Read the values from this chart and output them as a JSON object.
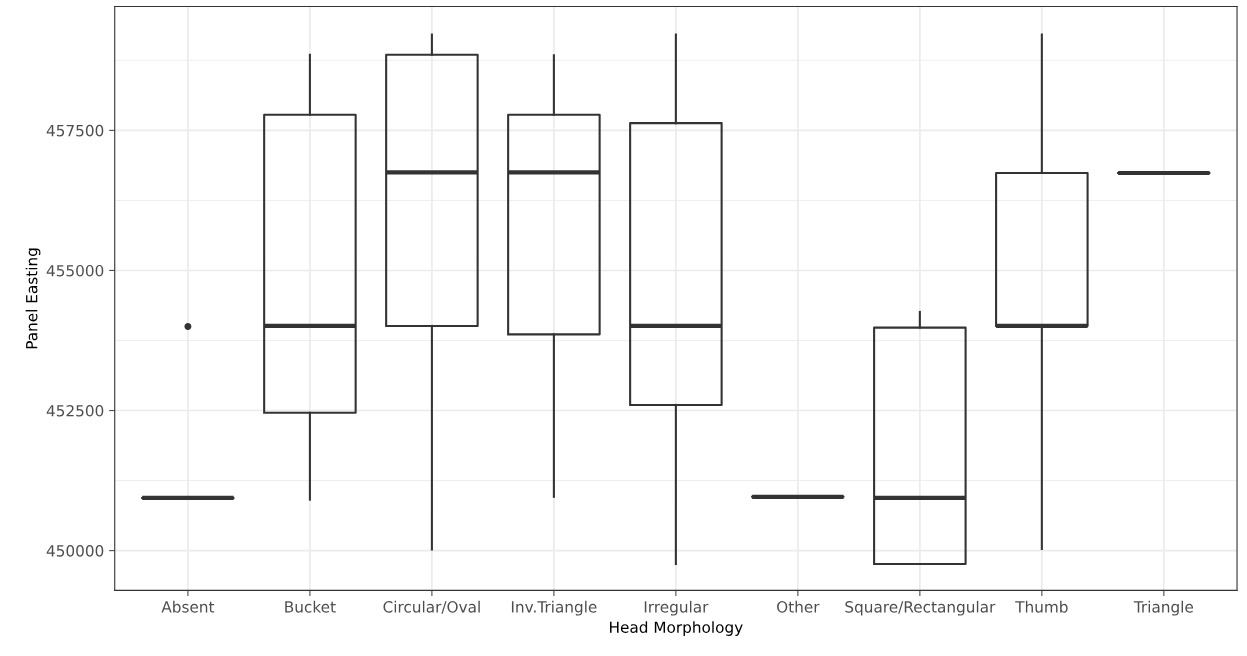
{
  "chart_data": {
    "type": "box",
    "xlabel": "Head Morphology",
    "ylabel": "Panel Easting",
    "categories": [
      "Absent",
      "Bucket",
      "Circular/Oval",
      "Inv.Triangle",
      "Irregular",
      "Other",
      "Square/Rectangular",
      "Thumb",
      "Triangle"
    ],
    "boxes": [
      {
        "low": 450940,
        "q1": 450940,
        "median": 450940,
        "q3": 450940,
        "high": 450940,
        "outliers": [
          454000
        ]
      },
      {
        "low": 450910,
        "q1": 452460,
        "median": 454010,
        "q3": 457780,
        "high": 458850
      },
      {
        "low": 450020,
        "q1": 454010,
        "median": 456750,
        "q3": 458850,
        "high": 459210
      },
      {
        "low": 450960,
        "q1": 453860,
        "median": 456750,
        "q3": 457780,
        "high": 458840
      },
      {
        "low": 449760,
        "q1": 452600,
        "median": 454010,
        "q3": 457630,
        "high": 459210
      },
      {
        "low": 450960,
        "q1": 450960,
        "median": 450960,
        "q3": 450960,
        "high": 450960
      },
      {
        "low": 449760,
        "q1": 449760,
        "median": 450940,
        "q3": 453980,
        "high": 454260
      },
      {
        "low": 450030,
        "q1": 454010,
        "median": 454010,
        "q3": 456740,
        "high": 459210
      },
      {
        "low": 456740,
        "q1": 456740,
        "median": 456740,
        "q3": 456740,
        "high": 456740
      }
    ],
    "ylim": [
      449290,
      459710
    ],
    "yticks": [
      450000,
      452500,
      455000,
      457500
    ],
    "grid": true,
    "color": "#333333"
  }
}
